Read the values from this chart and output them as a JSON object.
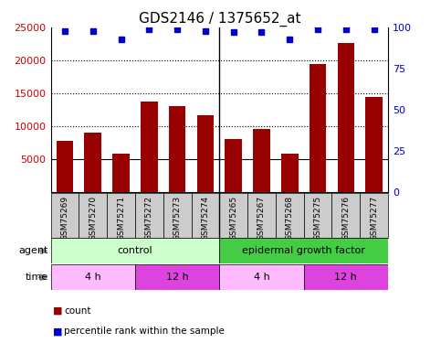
{
  "title": "GDS2146 / 1375652_at",
  "samples": [
    "GSM75269",
    "GSM75270",
    "GSM75271",
    "GSM75272",
    "GSM75273",
    "GSM75274",
    "GSM75265",
    "GSM75267",
    "GSM75268",
    "GSM75275",
    "GSM75276",
    "GSM75277"
  ],
  "bar_values": [
    7800,
    9000,
    5800,
    13700,
    13000,
    11700,
    8000,
    9600,
    5900,
    19400,
    22700,
    14500
  ],
  "dot_values": [
    98,
    98,
    93,
    99,
    99,
    98,
    97,
    97,
    93,
    99,
    99,
    99
  ],
  "bar_color": "#990000",
  "dot_color": "#0000cc",
  "ylim_left": [
    0,
    25000
  ],
  "ylim_right": [
    0,
    100
  ],
  "yticks_left": [
    5000,
    10000,
    15000,
    20000,
    25000
  ],
  "yticks_right": [
    0,
    25,
    50,
    75,
    100
  ],
  "agent_groups": [
    {
      "label": "control",
      "start": 0,
      "end": 6,
      "color": "#ccffcc"
    },
    {
      "label": "epidermal growth factor",
      "start": 6,
      "end": 12,
      "color": "#44cc44"
    }
  ],
  "time_groups": [
    {
      "label": "4 h",
      "start": 0,
      "end": 3,
      "color": "#ffbbff"
    },
    {
      "label": "12 h",
      "start": 3,
      "end": 6,
      "color": "#dd44dd"
    },
    {
      "label": "4 h",
      "start": 6,
      "end": 9,
      "color": "#ffbbff"
    },
    {
      "label": "12 h",
      "start": 9,
      "end": 12,
      "color": "#dd44dd"
    }
  ],
  "plot_bg": "#ffffff",
  "title_fontsize": 11,
  "axis_label_color_left": "#cc0000",
  "axis_label_color_right": "#0000cc",
  "sample_box_color": "#cccccc",
  "grid_dotted_values": [
    10000,
    15000,
    20000
  ],
  "bar_bottom": 5000
}
